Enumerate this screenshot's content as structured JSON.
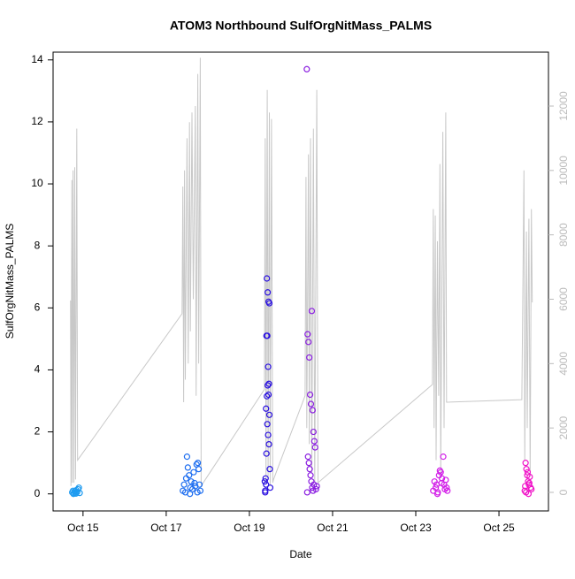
{
  "chart_data": {
    "type": "scatter",
    "title": "ATOM3 Northbound SulfOrgNitMass_PALMS",
    "x_label": "Date",
    "y_label": "SulfOrgNitMass_PALMS",
    "xlim": [
      14.28,
      26.19
    ],
    "xticks": [
      {
        "value": 15,
        "label": "Oct 15"
      },
      {
        "value": 17,
        "label": "Oct 17"
      },
      {
        "value": 19,
        "label": "Oct 19"
      },
      {
        "value": 21,
        "label": "Oct 21"
      },
      {
        "value": 23,
        "label": "Oct 23"
      },
      {
        "value": 25,
        "label": "Oct 25"
      }
    ],
    "ylim": [
      -0.55,
      14.25
    ],
    "yticks": [
      0,
      2,
      4,
      6,
      8,
      10,
      12,
      14
    ],
    "y2lim": [
      -577,
      13675
    ],
    "y2ticks": [
      0,
      2000,
      4000,
      6000,
      8000,
      10000,
      12000
    ],
    "y2_color": "#bbbbbb",
    "series": [
      {
        "style": "line",
        "axis": "y2",
        "color": "#c8c8c8",
        "x": [
          14.7,
          14.71,
          14.73,
          14.74,
          14.76,
          14.78,
          14.8,
          14.82,
          14.85,
          14.87,
          17.38,
          17.4,
          17.42,
          17.44,
          17.46,
          17.5,
          17.53,
          17.56,
          17.58,
          17.62,
          17.65,
          17.7,
          17.72,
          17.76,
          17.78,
          17.82,
          17.84,
          19.36,
          19.38,
          19.4,
          19.43,
          19.45,
          19.48,
          19.5,
          19.53,
          19.56,
          19.58,
          20.34,
          20.36,
          20.38,
          20.42,
          20.44,
          20.47,
          20.5,
          20.54,
          20.57,
          20.62,
          20.65,
          23.4,
          23.42,
          23.44,
          23.47,
          23.49,
          23.52,
          23.55,
          23.58,
          23.6,
          23.65,
          23.68,
          23.72,
          23.74,
          25.55,
          25.6,
          25.62,
          25.66,
          25.68,
          25.72,
          25.75,
          25.78,
          25.8
        ],
        "values": [
          5960,
          200,
          9700,
          300,
          10000,
          300,
          10100,
          400,
          11300,
          1000,
          5550,
          9500,
          2800,
          10000,
          3500,
          11000,
          4000,
          11500,
          5000,
          11800,
          6000,
          12000,
          3000,
          13000,
          4000,
          13500,
          200,
          3200,
          11000,
          300,
          12500,
          500,
          11800,
          200,
          11600,
          300,
          400,
          3000,
          9800,
          2000,
          10500,
          1500,
          11000,
          600,
          11300,
          300,
          12500,
          300,
          3350,
          8800,
          2000,
          8600,
          1000,
          7800,
          3000,
          10200,
          500,
          11200,
          2000,
          11800,
          2800,
          2880,
          10000,
          1000,
          8100,
          2000,
          8500,
          500,
          8800,
          5900
        ]
      },
      {
        "style": "points",
        "color": "#1e9bf0",
        "x": [
          14.74,
          14.76,
          14.78,
          14.8,
          14.82,
          14.84,
          14.86,
          14.88,
          14.9,
          14.92,
          14.77,
          14.83
        ],
        "values": [
          0.05,
          0.1,
          0.02,
          0.08,
          0.04,
          0.12,
          0.06,
          0.15,
          0.2,
          0.03,
          0.0,
          0.01
        ]
      },
      {
        "style": "points",
        "color": "#1e6ef0",
        "x": [
          17.4,
          17.43,
          17.46,
          17.5,
          17.52,
          17.55,
          17.58,
          17.6,
          17.63,
          17.66,
          17.7,
          17.73,
          17.76,
          17.8,
          17.82,
          17.48,
          17.57,
          17.68,
          17.75,
          17.78
        ],
        "values": [
          0.1,
          0.3,
          0.05,
          1.2,
          0.85,
          0.6,
          0.2,
          0.4,
          0.15,
          0.7,
          0.25,
          0.95,
          1.0,
          0.3,
          0.1,
          0.5,
          0.0,
          0.35,
          0.05,
          0.8
        ]
      },
      {
        "style": "points",
        "color": "#2a10e0",
        "x": [
          19.38,
          19.4,
          19.42,
          19.44,
          19.46,
          19.48,
          19.5,
          19.41,
          19.43,
          19.45,
          19.47,
          19.39,
          19.44,
          19.46,
          19.42,
          19.4,
          19.48,
          19.38,
          19.43,
          19.45,
          19.47,
          19.41,
          19.49,
          19.37
        ],
        "values": [
          0.1,
          0.3,
          6.95,
          6.5,
          6.2,
          6.15,
          0.2,
          5.1,
          5.1,
          4.1,
          3.55,
          0.5,
          3.5,
          3.2,
          3.15,
          2.75,
          2.55,
          0.05,
          2.25,
          1.9,
          1.6,
          1.3,
          0.8,
          0.4
        ]
      },
      {
        "style": "points",
        "color": "#8a1ee0",
        "x": [
          20.38,
          20.4,
          20.42,
          20.44,
          20.46,
          20.48,
          20.5,
          20.52,
          20.54,
          20.56,
          20.58,
          20.41,
          20.43,
          20.45,
          20.47,
          20.49,
          20.51,
          20.53,
          20.55,
          20.39,
          20.6,
          20.62
        ],
        "values": [
          13.7,
          5.15,
          4.9,
          4.4,
          3.2,
          2.9,
          5.9,
          2.7,
          2.0,
          1.7,
          1.5,
          1.2,
          1.0,
          0.8,
          0.6,
          0.4,
          0.2,
          0.1,
          0.3,
          0.05,
          0.15,
          0.25
        ]
      },
      {
        "style": "points",
        "color": "#d21ee8",
        "x": [
          23.42,
          23.45,
          23.48,
          23.5,
          23.53,
          23.56,
          23.58,
          23.6,
          23.63,
          23.66,
          23.68,
          23.7,
          23.72,
          23.74,
          23.76,
          23.52,
          23.62
        ],
        "values": [
          0.1,
          0.4,
          0.2,
          0.3,
          0.05,
          0.6,
          0.75,
          0.7,
          0.5,
          1.2,
          0.3,
          0.15,
          0.45,
          0.2,
          0.1,
          0.0,
          0.35
        ]
      },
      {
        "style": "points",
        "color": "#f014c8",
        "x": [
          25.62,
          25.64,
          25.66,
          25.68,
          25.7,
          25.72,
          25.74,
          25.76,
          25.78,
          25.65,
          25.69,
          25.73,
          25.63,
          25.71
        ],
        "values": [
          0.1,
          1.0,
          0.8,
          0.6,
          0.4,
          0.3,
          0.55,
          0.2,
          0.15,
          0.05,
          0.7,
          0.35,
          0.25,
          0.0
        ]
      }
    ]
  }
}
